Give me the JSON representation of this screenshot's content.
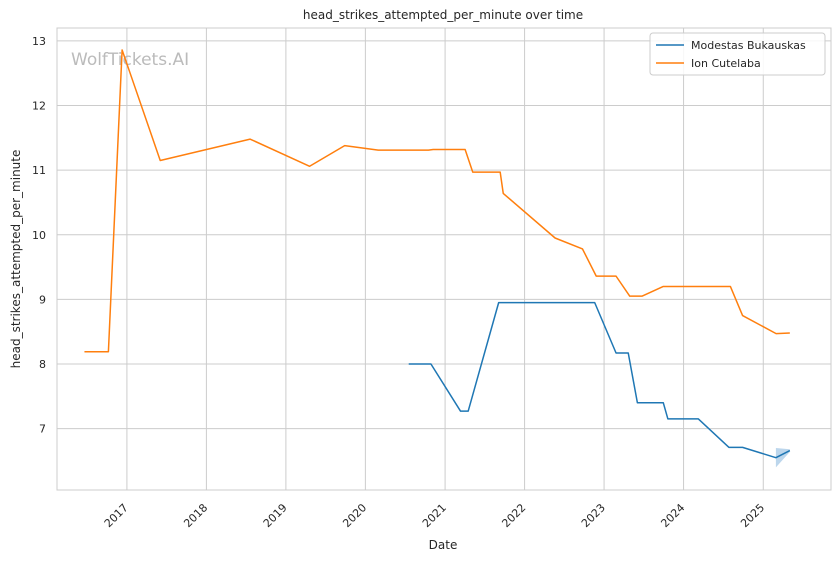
{
  "chart_data": {
    "type": "line",
    "title": "head_strikes_attempted_per_minute over time",
    "xlabel": "Date",
    "ylabel": "head_strikes_attempted_per_minute",
    "watermark": "WolfTickets.AI",
    "x_ticks": [
      "2017",
      "2018",
      "2019",
      "2020",
      "2021",
      "2022",
      "2023",
      "2024",
      "2025"
    ],
    "y_ticks": [
      7,
      8,
      9,
      10,
      11,
      12,
      13
    ],
    "xlim": [
      "2016-02-15",
      "2025-11-08"
    ],
    "ylim": [
      6.05,
      13.2
    ],
    "grid": true,
    "legend_position": "top-right",
    "colors": {
      "series_1": "#1f77b4",
      "series_2": "#ff7f0e",
      "band": "#a6c8e6"
    },
    "series": [
      {
        "name": "Modestas Bukauskas",
        "color": "#1f77b4",
        "points": [
          [
            "2020-07-18",
            8.0
          ],
          [
            "2020-10-28",
            8.0
          ],
          [
            "2021-03-13",
            7.27
          ],
          [
            "2021-04-17",
            7.27
          ],
          [
            "2021-09-04",
            8.95
          ],
          [
            "2022-11-19",
            8.95
          ],
          [
            "2023-02-25",
            8.17
          ],
          [
            "2023-04-22",
            8.17
          ],
          [
            "2023-06-03",
            7.4
          ],
          [
            "2023-09-30",
            7.4
          ],
          [
            "2023-10-21",
            7.15
          ],
          [
            "2024-03-09",
            7.15
          ],
          [
            "2024-07-27",
            6.71
          ],
          [
            "2024-09-28",
            6.71
          ],
          [
            "2025-02-28",
            6.55
          ],
          [
            "2025-05-03",
            6.66
          ]
        ],
        "band": [
          [
            "2025-02-28",
            6.4,
            6.7
          ],
          [
            "2025-05-03",
            6.64,
            6.68
          ]
        ]
      },
      {
        "name": "Ion Cutelaba",
        "color": "#ff7f0e",
        "points": [
          [
            "2016-06-20",
            8.19
          ],
          [
            "2016-10-08",
            8.19
          ],
          [
            "2016-12-10",
            12.86
          ],
          [
            "2017-06-03",
            11.15
          ],
          [
            "2018-07-21",
            11.48
          ],
          [
            "2019-04-20",
            11.06
          ],
          [
            "2019-09-28",
            11.38
          ],
          [
            "2020-02-29",
            11.31
          ],
          [
            "2020-10-17",
            11.31
          ],
          [
            "2020-11-07",
            11.32
          ],
          [
            "2021-04-03",
            11.32
          ],
          [
            "2021-05-08",
            10.97
          ],
          [
            "2021-09-11",
            10.97
          ],
          [
            "2021-09-25",
            10.64
          ],
          [
            "2022-05-21",
            9.95
          ],
          [
            "2022-09-24",
            9.78
          ],
          [
            "2022-11-26",
            9.36
          ],
          [
            "2023-02-25",
            9.36
          ],
          [
            "2023-04-29",
            9.05
          ],
          [
            "2023-06-24",
            9.05
          ],
          [
            "2023-09-30",
            9.2
          ],
          [
            "2024-08-03",
            9.2
          ],
          [
            "2024-09-28",
            8.75
          ],
          [
            "2025-03-01",
            8.47
          ],
          [
            "2025-05-03",
            8.48
          ]
        ]
      }
    ]
  }
}
